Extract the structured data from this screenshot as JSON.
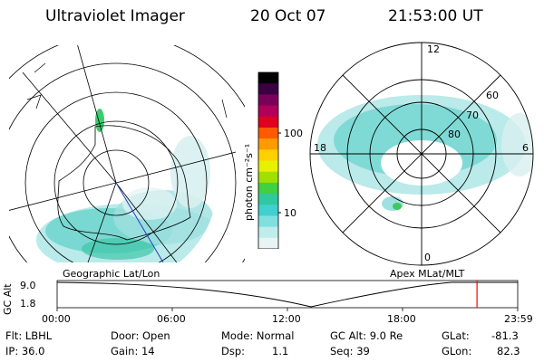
{
  "header": {
    "instrument": "Ultraviolet Imager",
    "date": "20 Oct 07",
    "time": "21:53:00 UT"
  },
  "colorbar": {
    "unit_label": "photon cm⁻²s⁻¹",
    "ticks": [
      "100",
      "10"
    ],
    "colors": [
      "#000000",
      "#3a0040",
      "#7a005a",
      "#b0005a",
      "#e00020",
      "#ff5a00",
      "#ff9a00",
      "#ffd000",
      "#e8f000",
      "#a0e000",
      "#40d040",
      "#30c8a0",
      "#40d0d0",
      "#80e0e0",
      "#c0ecec",
      "#e8f4f4"
    ]
  },
  "left_map": {
    "label": "Geographic Lat/Lon"
  },
  "right_map": {
    "label": "Apex MLat/MLT",
    "mlt_labels": {
      "top": "12",
      "left": "18",
      "right": "6",
      "bottom": "0"
    },
    "lat_labels": [
      "60",
      "70",
      "80"
    ]
  },
  "altitude_plot": {
    "ylabel": "GC Alt",
    "ytick_top": "9.0",
    "ytick_bottom": "1.8",
    "xticks": [
      "00:00",
      "06:00",
      "12:00",
      "18:00",
      "23:59"
    ],
    "current_marker_hour": 21.88,
    "marker_color": "#ff0000"
  },
  "footer": {
    "flt": "Flt: LBHL",
    "ip": "IP: 36.0",
    "door": "Door: Open",
    "gain": "Gain: 14",
    "mode": "Mode: Normal",
    "dsp_label": "Dsp:",
    "dsp_value": "1.1",
    "gc_alt": "GC Alt: 9.0 Re",
    "seq": "Seq: 39",
    "glat_label": "GLat:",
    "glat_value": "-81.3",
    "glon_label": "GLon:",
    "glon_value": "82.3"
  }
}
